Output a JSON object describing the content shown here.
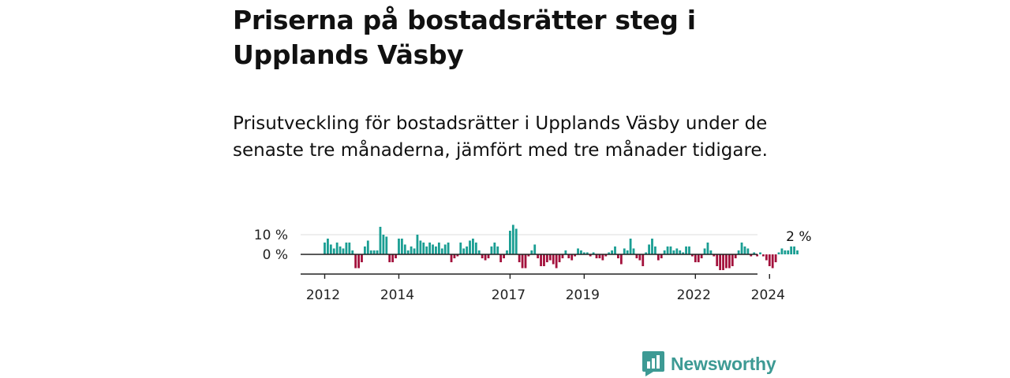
{
  "title": "Priserna på bostadsrätter steg i Upplands Väsby",
  "subtitle": "Prisutveckling för bostadsrätter i Upplands Väsby under de senaste tre månaderna, jämfört med tre månader tidigare.",
  "brand": {
    "name": "Newsworthy",
    "color": "#3d9a94"
  },
  "colors": {
    "positive": "#1a9e93",
    "negative": "#a3113c",
    "axis": "#222222",
    "grid": "#dddddd"
  },
  "chart_data": {
    "type": "bar",
    "x_start": "2012-01",
    "frequency": "monthly",
    "ylim": [
      -10,
      15
    ],
    "y_ticks": [
      0,
      10
    ],
    "y_tick_labels": [
      "0 %",
      "10 %"
    ],
    "x_tick_labels": [
      {
        "label": "2012",
        "year": 2012
      },
      {
        "label": "2014",
        "year": 2014
      },
      {
        "label": "2017",
        "year": 2017
      },
      {
        "label": "2019",
        "year": 2019
      },
      {
        "label": "2022",
        "year": 2022
      },
      {
        "label": "2024",
        "year": 2024
      }
    ],
    "last_value_label": "2 %",
    "values": [
      6,
      8,
      5,
      3,
      6,
      4,
      3,
      6,
      6,
      2,
      -7,
      -7,
      -4,
      4,
      7,
      2,
      2,
      2,
      14,
      10,
      9,
      -4,
      -4,
      -2,
      8,
      8,
      5,
      2,
      4,
      3,
      10,
      7,
      6,
      4,
      6,
      5,
      4,
      6,
      3,
      5,
      6,
      -4,
      -2,
      -1,
      6,
      3,
      4,
      7,
      8,
      6,
      2,
      -2,
      -3,
      -2,
      4,
      6,
      4,
      -4,
      -2,
      2,
      12,
      15,
      13,
      -4,
      -7,
      -7,
      -1,
      2,
      5,
      -2,
      -6,
      -6,
      -4,
      -3,
      -5,
      -7,
      -4,
      -2,
      2,
      -2,
      -3,
      -1,
      3,
      2,
      1,
      1,
      -1,
      1,
      -2,
      -2,
      -3,
      -1,
      1,
      2,
      4,
      -2,
      -5,
      3,
      2,
      8,
      3,
      -2,
      -3,
      -6,
      1,
      5,
      8,
      4,
      -3,
      -2,
      2,
      4,
      4,
      2,
      3,
      2,
      1,
      4,
      4,
      -1,
      -4,
      -4,
      -2,
      3,
      6,
      2,
      -1,
      -6,
      -8,
      -8,
      -7,
      -7,
      -6,
      -2,
      2,
      6,
      4,
      3,
      -1,
      1,
      -1,
      1,
      -1,
      -3,
      -6,
      -7,
      -4,
      1,
      3,
      2,
      2,
      4,
      4,
      2
    ]
  }
}
